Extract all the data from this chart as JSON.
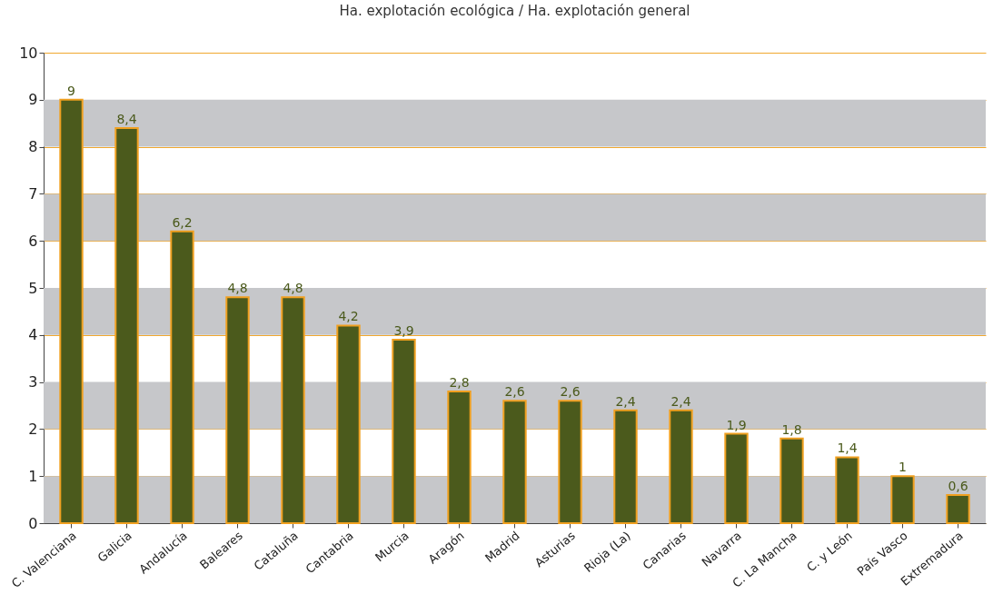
{
  "chart_data": {
    "type": "bar",
    "title": "Ha. explotación ecológica / Ha. explotación general",
    "categories": [
      "C. Valenciana",
      "Galicia",
      "Andalucía",
      "Baleares",
      "Cataluña",
      "Cantabria",
      "Murcia",
      "Aragón",
      "Madrid",
      "Asturias",
      "Rioja (La)",
      "Canarias",
      "Navarra",
      "C. La Mancha",
      "C. y León",
      "País Vasco",
      "Extremadura"
    ],
    "values": [
      9,
      8.4,
      6.2,
      4.8,
      4.8,
      4.2,
      3.9,
      2.8,
      2.6,
      2.6,
      2.4,
      2.4,
      1.9,
      1.8,
      1.4,
      1,
      0.6
    ],
    "value_labels": [
      "9",
      "8,4",
      "6,2",
      "4,8",
      "4,8",
      "4,2",
      "3,9",
      "2,8",
      "2,6",
      "2,6",
      "2,4",
      "2,4",
      "1,9",
      "1,8",
      "1,4",
      "1",
      "0,6"
    ],
    "color": "#4b5a1c",
    "ylim": [
      0,
      10
    ],
    "yticks": [
      0,
      1,
      2,
      3,
      4,
      5,
      6,
      7,
      8,
      9,
      10
    ],
    "grid": "y",
    "bands": [
      {
        "axis": "y",
        "from": 0,
        "to": 1,
        "color": "#c6c7ca"
      },
      {
        "axis": "y",
        "from": 2,
        "to": 3,
        "color": "#c6c7ca"
      },
      {
        "axis": "y",
        "from": 4,
        "to": 5,
        "color": "#c6c7ca"
      },
      {
        "axis": "y",
        "from": 6,
        "to": 7,
        "color": "#c6c7ca"
      },
      {
        "axis": "y",
        "from": 8,
        "to": 9,
        "color": "#c6c7ca"
      }
    ]
  }
}
